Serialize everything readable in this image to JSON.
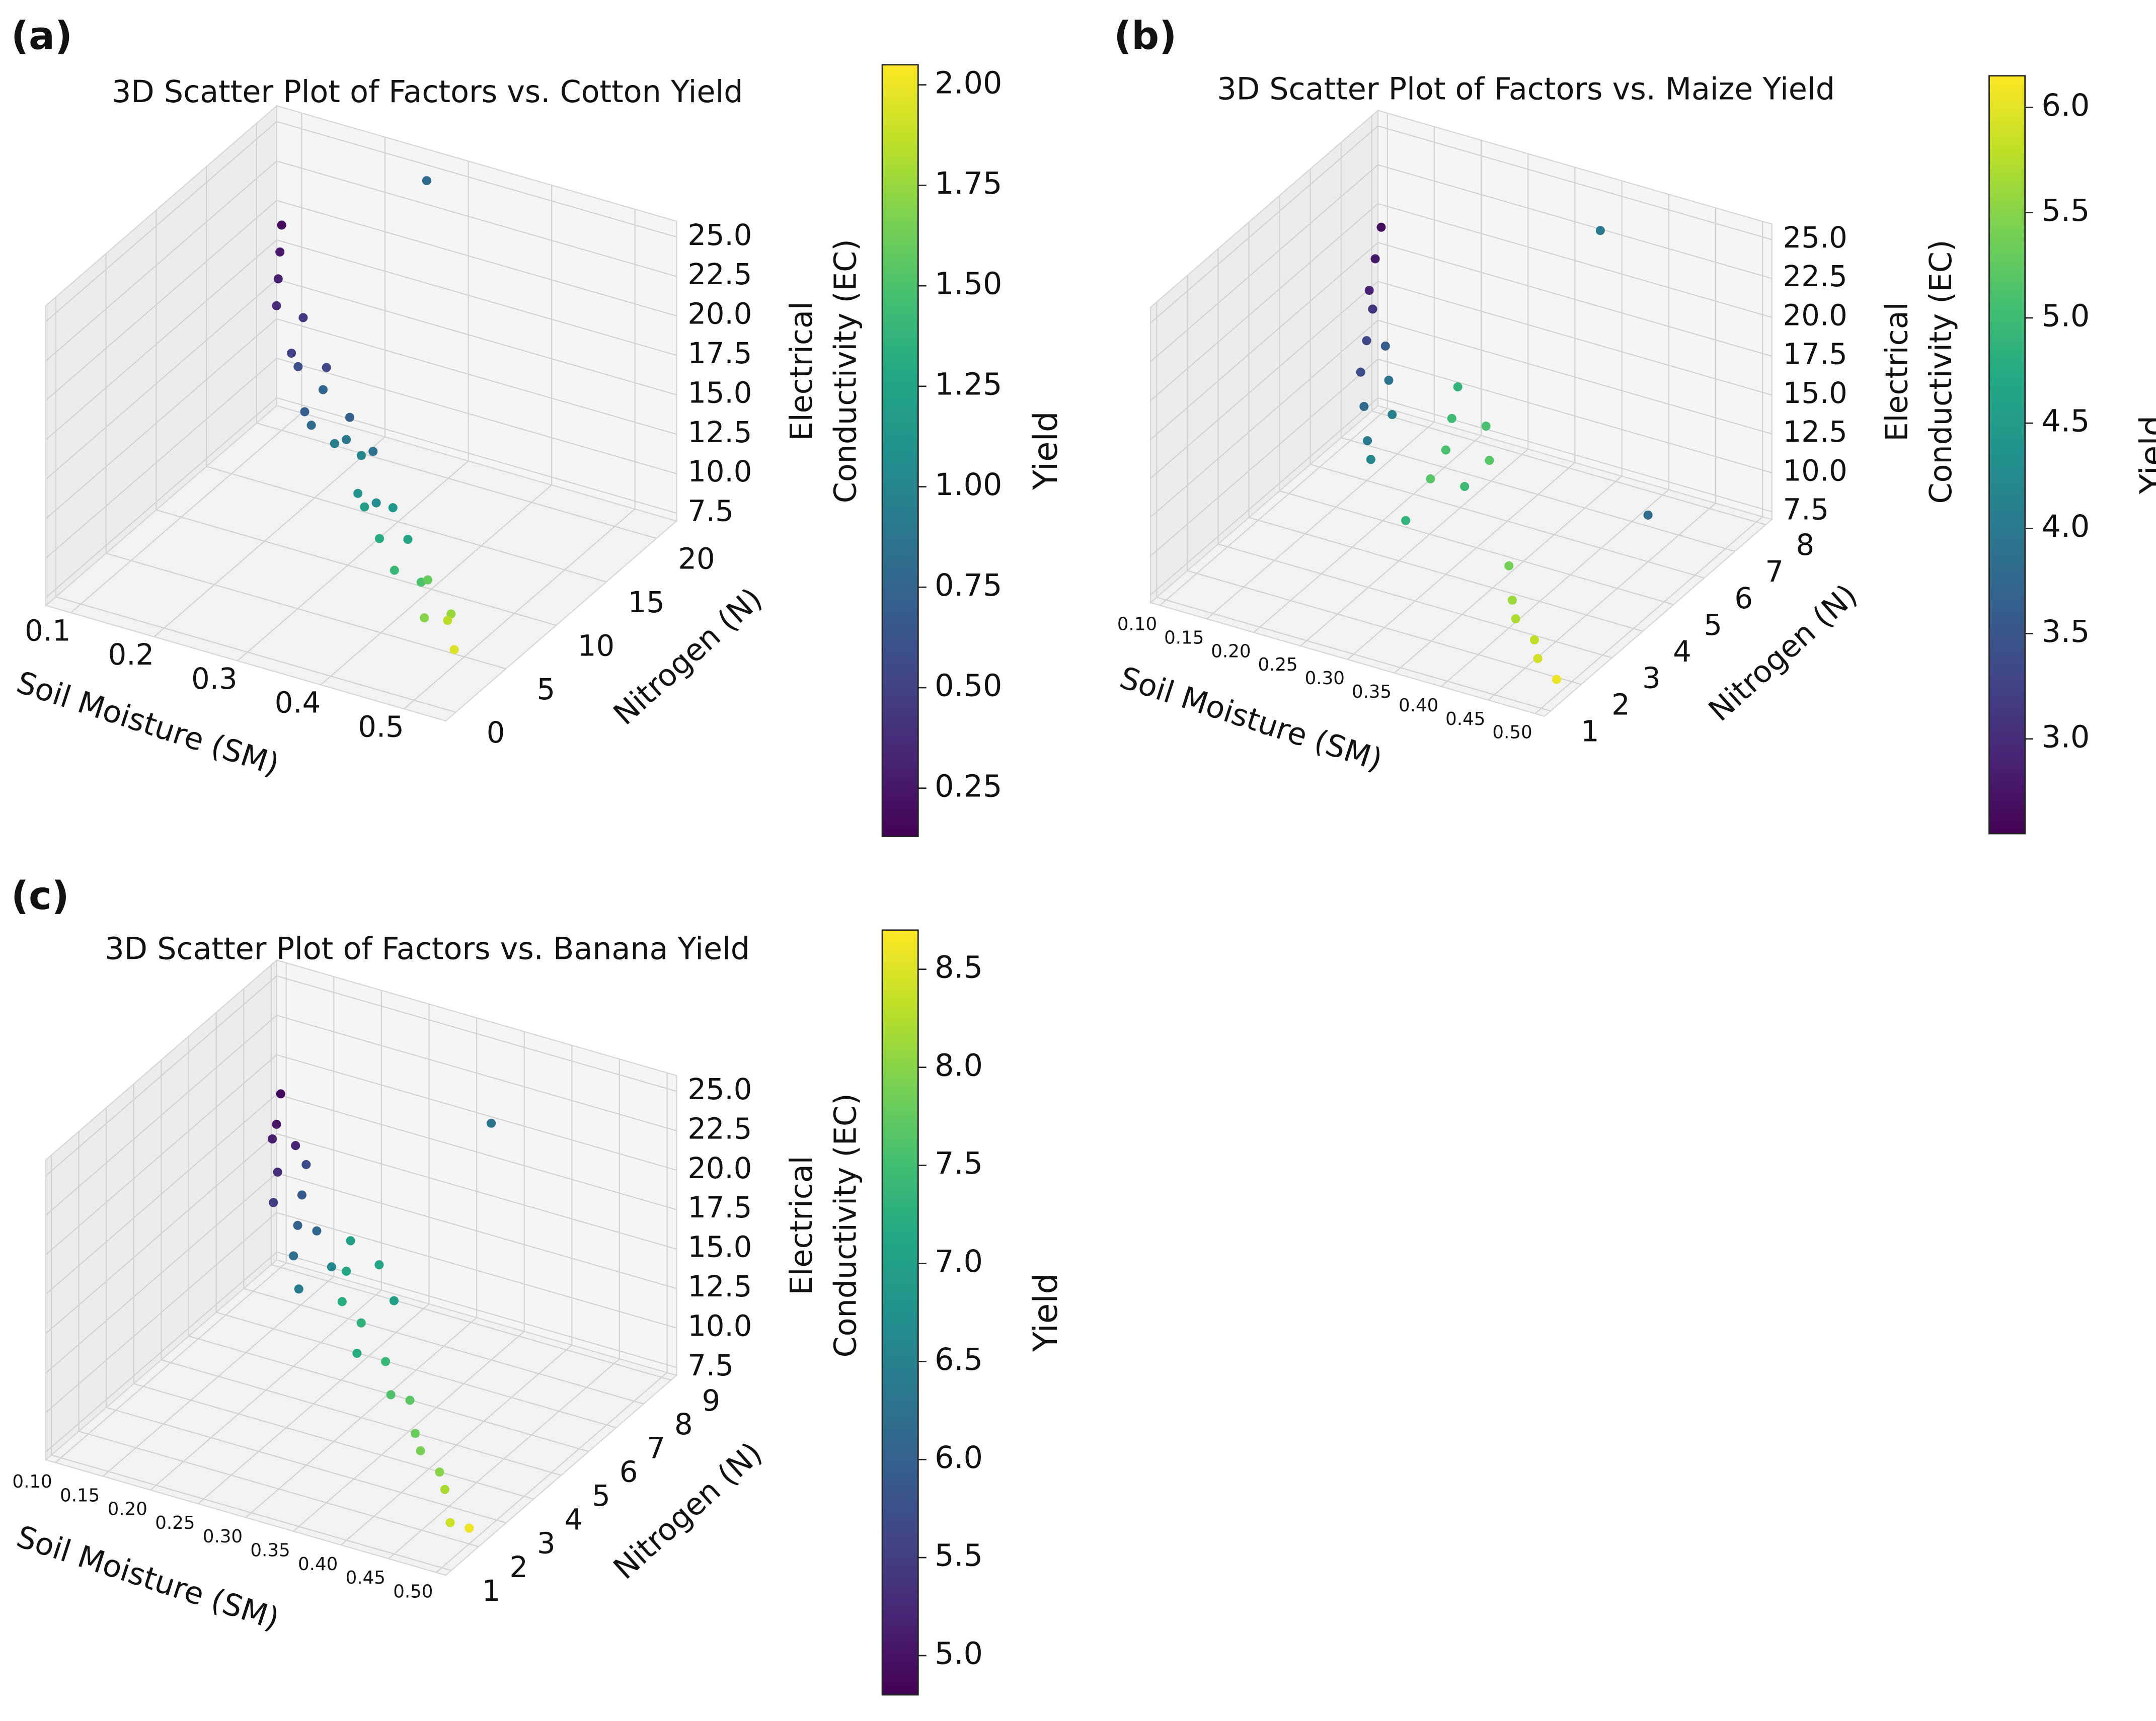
{
  "chart_data": [
    {
      "type": "scatter3d",
      "panel_label": "(a)",
      "title": "3D Scatter Plot of Factors vs. Cotton Yield",
      "xlabel": "Soil Moisture (SM)",
      "ylabel": "Nitrogen (N)",
      "zlabel": [
        "Electrical",
        "Conductivity (EC)"
      ],
      "colorbar_label": "Yield",
      "colormap": "viridis",
      "xlim": [
        0.07,
        0.55
      ],
      "xticks": [
        0.1,
        0.2,
        0.3,
        0.4,
        0.5
      ],
      "ylim": [
        -1,
        22
      ],
      "yticks": [
        0,
        5,
        10,
        15,
        20
      ],
      "zlim": [
        7,
        26
      ],
      "zticks": [
        {
          "value": 7.5,
          "label": "7.5"
        },
        {
          "value": 10,
          "label": "10.0"
        },
        12.5,
        {
          "value": 15,
          "label": "15.0"
        },
        17.5,
        {
          "value": 20,
          "label": "20.0"
        },
        22.5,
        {
          "value": 25,
          "label": "25.0"
        }
      ],
      "clim": [
        0.13,
        2.05
      ],
      "cticks": [
        0.25,
        {
          "value": 0.5,
          "label": "0.50"
        },
        0.75,
        {
          "value": 1,
          "label": "1.00"
        },
        1.25,
        {
          "value": 1.5,
          "label": "1.50"
        },
        1.75,
        {
          "value": 2,
          "label": "2.00"
        }
      ],
      "x": [
        0.1,
        0.11,
        0.12,
        0.13,
        0.15,
        0.16,
        0.18,
        0.19,
        0.2,
        0.21,
        0.22,
        0.23,
        0.25,
        0.26,
        0.27,
        0.28,
        0.3,
        0.31,
        0.32,
        0.33,
        0.35,
        0.36,
        0.38,
        0.4,
        0.42,
        0.44,
        0.46,
        0.48,
        0.5,
        0.25
      ],
      "y": [
        20,
        19,
        18,
        17,
        18,
        16,
        15,
        17,
        14,
        15,
        13,
        16,
        14,
        12,
        15,
        13,
        11,
        12,
        10,
        12,
        9,
        11,
        8,
        9,
        8,
        6,
        7,
        5,
        4,
        22
      ],
      "z": [
        20,
        19,
        18,
        17,
        16,
        15,
        15,
        14,
        13,
        14,
        13,
        12,
        12,
        13,
        11,
        12,
        11,
        10,
        11,
        10,
        10,
        9,
        9,
        8,
        9,
        8,
        8,
        9,
        8,
        24
      ],
      "c": [
        0.2,
        0.25,
        0.3,
        0.35,
        0.45,
        0.5,
        0.6,
        0.55,
        0.7,
        0.75,
        0.8,
        0.7,
        0.9,
        0.95,
        0.85,
        1.0,
        1.1,
        1.05,
        1.2,
        1.15,
        1.3,
        1.25,
        1.4,
        1.5,
        1.6,
        1.7,
        1.75,
        1.85,
        1.95,
        0.8
      ]
    },
    {
      "type": "scatter3d",
      "panel_label": "(b)",
      "title": "3D Scatter Plot of Factors vs. Maize Yield",
      "xlabel": "Soil Moisture (SM)",
      "ylabel": "Nitrogen (N)",
      "zlabel": [
        "Electrical",
        "Conductivity (EC)"
      ],
      "colorbar_label": "Yield",
      "colormap": "viridis",
      "xlim": [
        0.09,
        0.51
      ],
      "xticks": [
        {
          "value": 0.1,
          "label": "0.10"
        },
        0.15,
        {
          "value": 0.2,
          "label": "0.20"
        },
        0.25,
        {
          "value": 0.3,
          "label": "0.30"
        },
        0.35,
        {
          "value": 0.4,
          "label": "0.40"
        },
        0.45,
        {
          "value": 0.5,
          "label": "0.50"
        }
      ],
      "ylim": [
        0.8,
        8.2
      ],
      "yticks": [
        1,
        2,
        3,
        4,
        5,
        6,
        7,
        8
      ],
      "zlim": [
        7,
        26
      ],
      "zticks": [
        {
          "value": 7.5,
          "label": "7.5"
        },
        {
          "value": 10,
          "label": "10.0"
        },
        12.5,
        {
          "value": 15,
          "label": "15.0"
        },
        17.5,
        {
          "value": 20,
          "label": "20.0"
        },
        22.5,
        {
          "value": 25,
          "label": "25.0"
        }
      ],
      "clim": [
        2.55,
        6.15
      ],
      "cticks": [
        {
          "value": 3,
          "label": "3.0"
        },
        3.5,
        {
          "value": 4,
          "label": "4.0"
        },
        4.5,
        {
          "value": 5,
          "label": "5.0"
        },
        5.5,
        {
          "value": 6,
          "label": "6.0"
        }
      ],
      "x": [
        0.1,
        0.11,
        0.12,
        0.14,
        0.15,
        0.16,
        0.17,
        0.18,
        0.19,
        0.2,
        0.21,
        0.22,
        0.28,
        0.29,
        0.3,
        0.3,
        0.31,
        0.32,
        0.29,
        0.33,
        0.4,
        0.42,
        0.44,
        0.46,
        0.48,
        0.5,
        0.35,
        0.45
      ],
      "y": [
        8,
        7.5,
        7,
        6.5,
        6,
        5.5,
        6,
        5,
        5.5,
        4.5,
        5,
        4,
        5,
        4.5,
        4,
        3.5,
        5,
        4,
        3,
        4.5,
        3,
        2.5,
        2,
        2,
        1.5,
        1.5,
        7.5,
        6
      ],
      "z": [
        19,
        18,
        17,
        17,
        16,
        15,
        16,
        14,
        15,
        13,
        14,
        13,
        17,
        16,
        15,
        14,
        15,
        13,
        12,
        14,
        11,
        10,
        10,
        9,
        9,
        8,
        24,
        10
      ],
      "c": [
        2.7,
        2.8,
        2.9,
        3.1,
        3.3,
        3.4,
        3.6,
        3.8,
        3.9,
        4.0,
        4.1,
        4.2,
        4.9,
        5.0,
        5.1,
        5.2,
        5.1,
        5.0,
        4.9,
        5.2,
        5.4,
        5.6,
        5.7,
        5.8,
        5.9,
        6.05,
        4.0,
        3.8
      ]
    },
    {
      "type": "scatter3d",
      "panel_label": "(c)",
      "title": "3D Scatter Plot of Factors vs. Banana Yield",
      "xlabel": "Soil Moisture (SM)",
      "ylabel": "Nitrogen (N)",
      "zlabel": [
        "Electrical",
        "Conductivity (EC)"
      ],
      "colorbar_label": "Yield",
      "colormap": "viridis",
      "xlim": [
        0.09,
        0.51
      ],
      "xticks": [
        {
          "value": 0.1,
          "label": "0.10"
        },
        0.15,
        {
          "value": 0.2,
          "label": "0.20"
        },
        0.25,
        {
          "value": 0.3,
          "label": "0.30"
        },
        0.35,
        {
          "value": 0.4,
          "label": "0.40"
        },
        0.45,
        {
          "value": 0.5,
          "label": "0.50"
        }
      ],
      "ylim": [
        0.8,
        9.2
      ],
      "yticks": [
        1,
        2,
        3,
        4,
        5,
        6,
        7,
        8,
        9
      ],
      "zlim": [
        7,
        26
      ],
      "zticks": [
        {
          "value": 7.5,
          "label": "7.5"
        },
        {
          "value": 10,
          "label": "10.0"
        },
        12.5,
        {
          "value": 15,
          "label": "15.0"
        },
        17.5,
        {
          "value": 20,
          "label": "20.0"
        },
        22.5,
        {
          "value": 25,
          "label": "25.0"
        }
      ],
      "clim": [
        4.8,
        8.7
      ],
      "cticks": [
        {
          "value": 5,
          "label": "5.0"
        },
        5.5,
        {
          "value": 6,
          "label": "6.0"
        },
        6.5,
        {
          "value": 7,
          "label": "7.0"
        },
        7.5,
        {
          "value": 8,
          "label": "8.0"
        },
        8.5
      ],
      "x": [
        0.1,
        0.11,
        0.12,
        0.13,
        0.14,
        0.15,
        0.17,
        0.18,
        0.19,
        0.2,
        0.21,
        0.22,
        0.24,
        0.26,
        0.27,
        0.28,
        0.29,
        0.3,
        0.31,
        0.32,
        0.34,
        0.36,
        0.38,
        0.4,
        0.42,
        0.44,
        0.46,
        0.48,
        0.5,
        0.35
      ],
      "y": [
        9,
        8.5,
        8,
        8.5,
        7.5,
        7,
        7.5,
        7,
        6.5,
        6,
        6.5,
        5.5,
        6,
        6,
        5.5,
        5,
        6,
        5,
        4.5,
        5.5,
        4.5,
        4,
        4,
        3.5,
        3,
        3,
        2.5,
        2,
        2,
        8
      ],
      "z": [
        18,
        17,
        17,
        16,
        16,
        15,
        17,
        16,
        15,
        14,
        15,
        13,
        14,
        16,
        15,
        14,
        15,
        13,
        12,
        14,
        12,
        11,
        11,
        10,
        10,
        9,
        9,
        8,
        8,
        22
      ],
      "c": [
        4.9,
        5.0,
        5.1,
        5.2,
        5.3,
        5.5,
        5.7,
        5.9,
        6.0,
        6.2,
        6.1,
        6.4,
        6.6,
        7.0,
        7.1,
        7.2,
        7.1,
        7.3,
        7.2,
        7.0,
        7.4,
        7.6,
        7.7,
        7.8,
        7.9,
        8.0,
        8.2,
        8.4,
        8.6,
        6.3
      ]
    }
  ]
}
